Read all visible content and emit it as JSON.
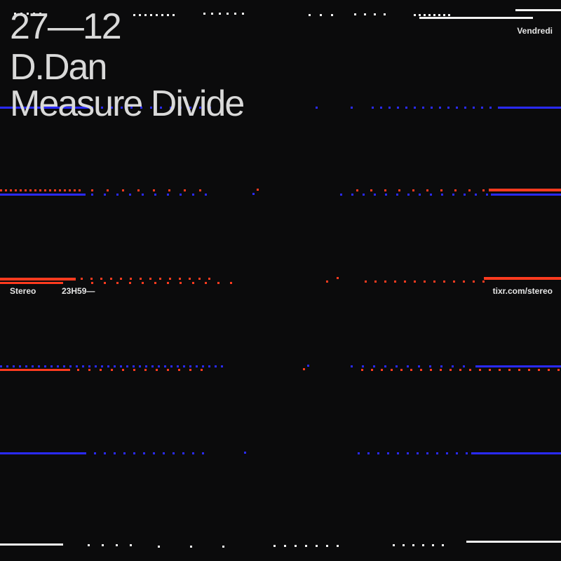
{
  "event": {
    "date": "27—12",
    "artist": "D.Dan",
    "title": "Measure Divide",
    "weekday": "Vendredi",
    "venue": "Stereo",
    "time": "23H59—",
    "ticket_link": "tixr.com/stereo"
  },
  "colors": {
    "background": "#0b0b0c",
    "text": "#d9d9d9",
    "blue": "#2a2aff",
    "red": "#ff3b1f",
    "white": "#f2f2f2"
  }
}
